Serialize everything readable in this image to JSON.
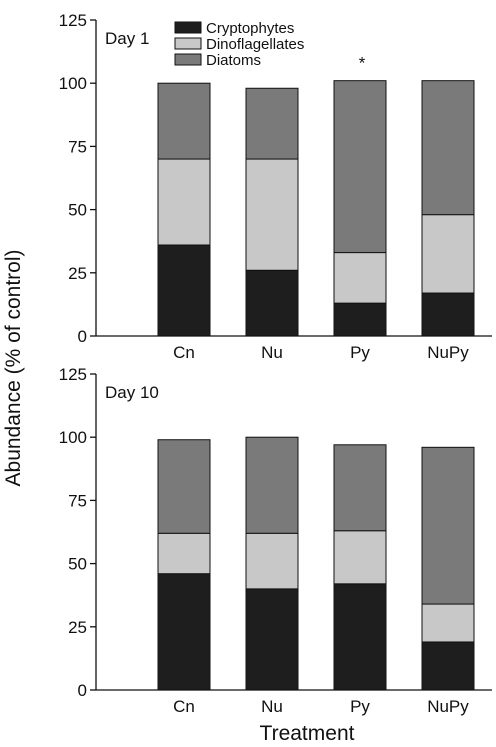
{
  "figure": {
    "ylabel": "Abundance (% of control)",
    "xlabel": "Treatment"
  },
  "legend": [
    {
      "name": "Cryptophytes",
      "color": "#1e1e1e"
    },
    {
      "name": "Dinoflagellates",
      "color": "#c8c8c8"
    },
    {
      "name": "Diatoms",
      "color": "#7a7a7a"
    }
  ],
  "chart_data": [
    {
      "type": "bar",
      "stacked": true,
      "panel_label": "Day 1",
      "categories": [
        "Cn",
        "Nu",
        "Py",
        "NuPy"
      ],
      "series": [
        {
          "name": "Cryptophytes",
          "values": [
            36,
            26,
            13,
            17
          ]
        },
        {
          "name": "Dinoflagellates",
          "values": [
            34,
            44,
            20,
            31
          ]
        },
        {
          "name": "Diatoms",
          "values": [
            30,
            28,
            68,
            53
          ]
        }
      ],
      "annotations": [
        {
          "category": "Py",
          "text": "*"
        }
      ],
      "ylim": [
        0,
        125
      ],
      "yticks": [
        0,
        25,
        50,
        75,
        100,
        125
      ],
      "legend_position": "top",
      "grid": false
    },
    {
      "type": "bar",
      "stacked": true,
      "panel_label": "Day 10",
      "categories": [
        "Cn",
        "Nu",
        "Py",
        "NuPy"
      ],
      "series": [
        {
          "name": "Cryptophytes",
          "values": [
            46,
            40,
            42,
            19
          ]
        },
        {
          "name": "Dinoflagellates",
          "values": [
            16,
            22,
            21,
            15
          ]
        },
        {
          "name": "Diatoms",
          "values": [
            37,
            38,
            34,
            62
          ]
        }
      ],
      "annotations": [],
      "ylim": [
        0,
        125
      ],
      "yticks": [
        0,
        25,
        50,
        75,
        100,
        125
      ],
      "grid": false
    }
  ]
}
